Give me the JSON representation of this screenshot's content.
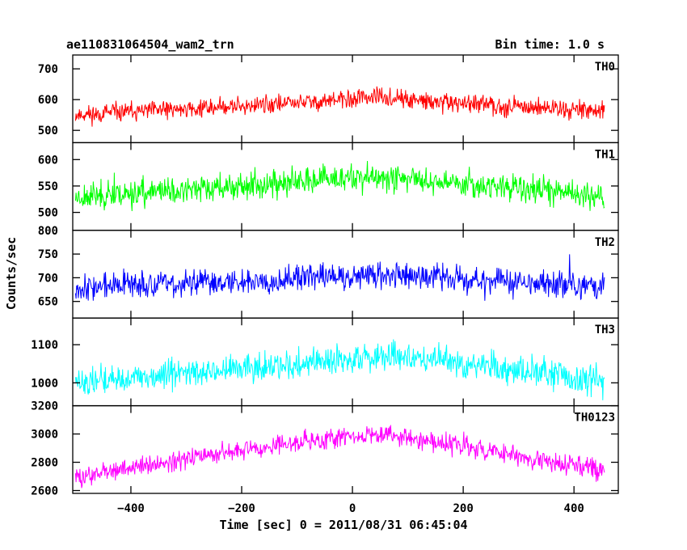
{
  "chart_data": {
    "type": "line",
    "title": "ae110831064504_wam2_trn",
    "subtitle": "Bin time: 1.0 s",
    "xlabel": "Time [sec] 0 = 2011/08/31 06:45:04",
    "ylabel": "Counts/sec",
    "xlim": [
      -505,
      480
    ],
    "x_ticks": [
      -400,
      -200,
      0,
      200,
      400
    ],
    "x_range": [
      -500,
      455
    ],
    "step": 1,
    "grid": false,
    "panels": [
      {
        "name": "TH0",
        "color": "#ff0000",
        "ylim": [
          460,
          745
        ],
        "yticks": [
          500,
          600,
          700
        ],
        "ytick_labels": [
          "500",
          "600",
          "700"
        ],
        "base": [
          [
            -500,
            550
          ],
          [
            -250,
            575
          ],
          [
            0,
            600
          ],
          [
            25,
            610
          ],
          [
            150,
            590
          ],
          [
            455,
            565
          ]
        ],
        "noise": 24,
        "seed": 11
      },
      {
        "name": "TH1",
        "color": "#00ff00",
        "ylim": [
          466,
          632
        ],
        "yticks": [
          500,
          550,
          600
        ],
        "ytick_labels": [
          "500",
          "550",
          "600"
        ],
        "base": [
          [
            -500,
            530
          ],
          [
            -250,
            545
          ],
          [
            0,
            565
          ],
          [
            100,
            565
          ],
          [
            455,
            530
          ]
        ],
        "noise": 20,
        "seed": 23
      },
      {
        "name": "TH2",
        "color": "#0000ff",
        "ylim": [
          615,
          800
        ],
        "yticks": [
          650,
          700,
          750,
          800
        ],
        "ytick_labels": [
          "650",
          "700",
          "750",
          "800"
        ],
        "base": [
          [
            -500,
            680
          ],
          [
            -250,
            690
          ],
          [
            0,
            705
          ],
          [
            100,
            705
          ],
          [
            455,
            680
          ]
        ],
        "noise": 22,
        "seed": 37
      },
      {
        "name": "TH3",
        "color": "#00ffff",
        "ylim": [
          940,
          1170
        ],
        "yticks": [
          1000,
          1100
        ],
        "ytick_labels": [
          "1000",
          "1100"
        ],
        "base": [
          [
            -500,
            1000
          ],
          [
            -250,
            1030
          ],
          [
            0,
            1060
          ],
          [
            100,
            1070
          ],
          [
            455,
            1000
          ]
        ],
        "noise": 30,
        "seed": 51
      },
      {
        "name": "TH0123",
        "color": "#ff00ff",
        "ylim": [
          2580,
          3200
        ],
        "yticks": [
          2600,
          2800,
          3000,
          3200
        ],
        "ytick_labels": [
          "2600",
          "2800",
          "3000",
          "3200"
        ],
        "base": [
          [
            -500,
            2690
          ],
          [
            -250,
            2860
          ],
          [
            0,
            2990
          ],
          [
            60,
            3000
          ],
          [
            455,
            2740
          ]
        ],
        "noise": 55,
        "seed": 73
      }
    ]
  }
}
